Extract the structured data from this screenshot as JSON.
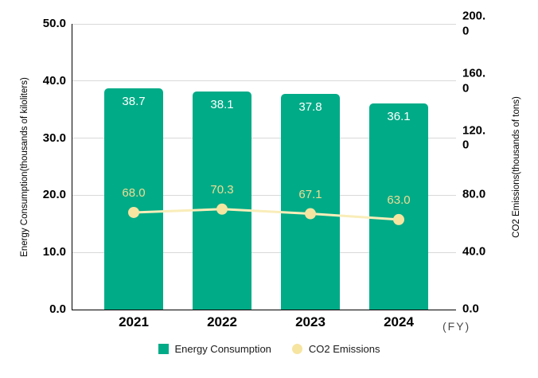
{
  "chart_data": {
    "type": "combo-bar-line",
    "categories": [
      "2021",
      "2022",
      "2023",
      "2024"
    ],
    "series": [
      {
        "name": "Energy Consumption",
        "type": "bar",
        "axis": "left",
        "values": [
          38.7,
          38.1,
          37.8,
          36.1
        ],
        "color": "#00AB87",
        "value_label_color": "#FFFFFF"
      },
      {
        "name": "CO2 Emissions",
        "type": "line",
        "axis": "right",
        "values": [
          68.0,
          70.3,
          67.1,
          63.0
        ],
        "color": "#F9EDB9",
        "point_color": "#F6E4A1",
        "value_label_color": "#F1DD94"
      }
    ],
    "left_axis": {
      "title": "Energy Consumption(thousands of kiloliters)",
      "min": 0,
      "max": 50,
      "tick_labels": [
        "50.0",
        "40.0",
        "30.0",
        "20.0",
        "10.0",
        "0.0"
      ]
    },
    "right_axis": {
      "title": "CO2 Emissions(thousands of tons)",
      "min": 0,
      "max": 200,
      "tick_labels": [
        "200.0",
        "160.0",
        "120.0",
        "80.0",
        "40.0",
        "0.0"
      ]
    },
    "x_axis": {
      "unit_label": "(FY)"
    },
    "grid": true,
    "legend_position": "bottom",
    "colors": {
      "gridline": "#D9D9D9",
      "axis_line": "#000000"
    }
  },
  "legend": {
    "items": [
      {
        "label": "Energy Consumption",
        "swatch": "square",
        "color": "#00AB87"
      },
      {
        "label": "CO2 Emissions",
        "swatch": "circle",
        "color": "#F6E4A1"
      }
    ]
  }
}
